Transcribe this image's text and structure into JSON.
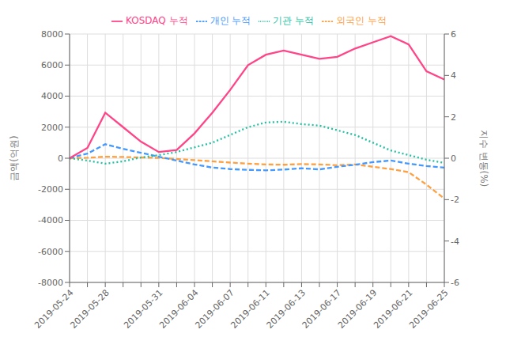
{
  "chart_data": {
    "type": "line",
    "ylabel": "금액(억원)",
    "y2label": "지수 변동(%)",
    "categories": [
      "2019-05-24",
      null,
      "2019-05-28",
      null,
      null,
      "2019-05-31",
      null,
      "2019-06-04",
      null,
      "2019-06-07",
      null,
      "2019-06-11",
      null,
      "2019-06-13",
      null,
      "2019-06-17",
      null,
      "2019-06-19",
      null,
      "2019-06-21",
      null,
      "2019-06-25"
    ],
    "series": [
      {
        "name": "외국인 누적",
        "color": "#FFA040",
        "line_style": "dashed",
        "values": [
          0,
          30,
          100,
          80,
          50,
          20,
          -50,
          -120,
          -200,
          -280,
          -350,
          -400,
          -420,
          -380,
          -400,
          -450,
          -400,
          -550,
          -700,
          -900,
          -1700,
          -2600
        ]
      },
      {
        "name": "개인 누적",
        "color": "#4499FF",
        "line_style": "dashed",
        "values": [
          0,
          300,
          900,
          600,
          350,
          100,
          -150,
          -400,
          -600,
          -700,
          -750,
          -780,
          -730,
          -650,
          -720,
          -550,
          -420,
          -250,
          -150,
          -350,
          -500,
          -600
        ]
      },
      {
        "name": "기관 누적",
        "color": "#20C0A0",
        "line_style": "dotted",
        "values": [
          0,
          -150,
          -350,
          -200,
          50,
          200,
          400,
          700,
          1000,
          1500,
          2000,
          2300,
          2350,
          2200,
          2100,
          1800,
          1500,
          1000,
          500,
          200,
          -100,
          -300
        ]
      },
      {
        "name": "KOSDAQ 누적",
        "color": "#FF4488",
        "line_style": "solid",
        "axis": "y2",
        "values": [
          0,
          0.5,
          2.2,
          1.5,
          0.8,
          0.3,
          0.4,
          1.2,
          2.2,
          3.3,
          4.5,
          5.0,
          5.2,
          5.0,
          4.8,
          4.9,
          5.3,
          5.6,
          5.9,
          5.5,
          4.2,
          3.8
        ]
      }
    ],
    "ylim": [
      -8000,
      8000
    ],
    "yticks": [
      -8000,
      -6000,
      -4000,
      -2000,
      0,
      2000,
      4000,
      6000,
      8000
    ],
    "y2lim": [
      -6,
      6
    ],
    "y2ticks": [
      -6,
      -4,
      -2,
      0,
      2,
      4,
      6
    ],
    "grid": true,
    "legend": "top"
  }
}
